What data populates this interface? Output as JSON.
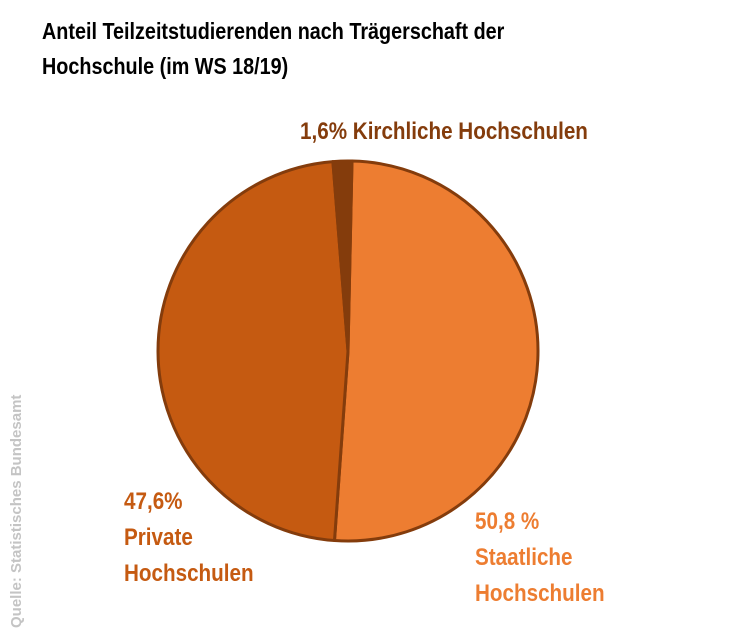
{
  "title": {
    "line1": "Anteil Teilzeitstudierenden nach Trägerschaft der",
    "line2": "Hochschule (im WS 18/19)"
  },
  "source": "Quelle: Statistisches Bundesamt",
  "chart_data": {
    "type": "pie",
    "title": "Anteil Teilzeitstudierenden nach Trägerschaft der Hochschule (im WS 18/19)",
    "slices": [
      {
        "name": "Staatliche Hochschulen",
        "value": 50.8,
        "pct_label": "50,8 %",
        "label_line1": "Staatliche",
        "label_line2": "Hochschulen",
        "color": "#ed7d31"
      },
      {
        "name": "Private Hochschulen",
        "value": 47.6,
        "pct_label": "47,6%",
        "label_line1": "Private",
        "label_line2": "Hochschulen",
        "color": "#c55a11"
      },
      {
        "name": "Kirchliche Hochschulen",
        "value": 1.6,
        "pct_label": "1,6%",
        "label_line1": "Kirchliche Hochschulen",
        "color": "#843c0c"
      }
    ],
    "stroke_color": "#843c0c"
  }
}
